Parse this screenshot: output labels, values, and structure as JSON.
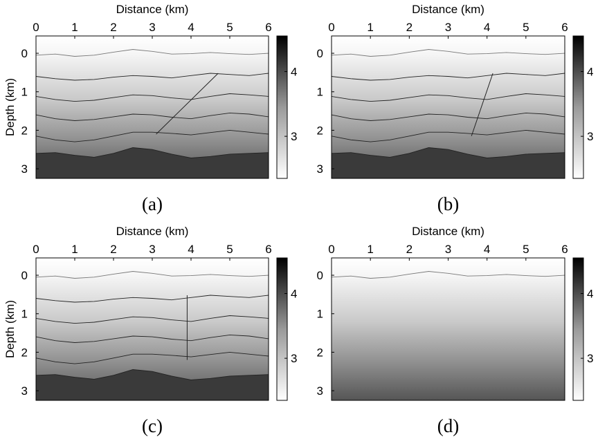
{
  "figure_title": "",
  "chart_data": [
    {
      "type": "heatmap",
      "caption": "(a)",
      "title": "",
      "xlabel": "Distance (km)",
      "ylabel": "Depth (km)",
      "xlim": [
        0,
        6
      ],
      "ylim": [
        3.25,
        -0.45
      ],
      "xticks": [
        0,
        1,
        2,
        3,
        4,
        5,
        6
      ],
      "yticks": [
        0,
        1,
        2,
        3
      ],
      "colorbar": {
        "range": [
          2.35,
          4.55
        ],
        "ticks": [
          3,
          4
        ],
        "colormap": "white-to-black"
      },
      "background_gradient": "velocity increases with depth",
      "deepest_layer_top_depth_km": 2.6,
      "horizons_km": [
        {
          "name": "surface",
          "x": [
            0,
            0.5,
            1,
            1.5,
            2,
            2.5,
            3,
            3.5,
            4,
            4.5,
            5,
            5.5,
            6
          ],
          "depth": [
            0.05,
            0.02,
            0.08,
            0.05,
            -0.03,
            -0.1,
            -0.05,
            0.02,
            0.01,
            -0.02,
            0.01,
            0.03,
            0.0
          ]
        },
        {
          "name": "horizon-1",
          "x": [
            0,
            0.5,
            1,
            1.5,
            2,
            2.5,
            3,
            3.5,
            4,
            4.5,
            5,
            5.5,
            6
          ],
          "depth": [
            0.6,
            0.66,
            0.7,
            0.68,
            0.62,
            0.58,
            0.6,
            0.64,
            0.58,
            0.52,
            0.55,
            0.58,
            0.52
          ]
        },
        {
          "name": "horizon-2",
          "x": [
            0,
            0.5,
            1,
            1.5,
            2,
            2.5,
            3,
            3.5,
            4,
            4.5,
            5,
            5.5,
            6
          ],
          "depth": [
            1.12,
            1.2,
            1.25,
            1.22,
            1.15,
            1.08,
            1.1,
            1.16,
            1.2,
            1.12,
            1.05,
            1.08,
            1.12
          ]
        },
        {
          "name": "horizon-3",
          "x": [
            0,
            0.5,
            1,
            1.5,
            2,
            2.5,
            3,
            3.5,
            4,
            4.5,
            5,
            5.5,
            6
          ],
          "depth": [
            1.6,
            1.7,
            1.75,
            1.72,
            1.65,
            1.58,
            1.6,
            1.66,
            1.7,
            1.62,
            1.55,
            1.58,
            1.65
          ]
        },
        {
          "name": "horizon-4",
          "x": [
            0,
            0.5,
            1,
            1.5,
            2,
            2.5,
            3,
            3.5,
            4,
            4.5,
            5,
            5.5,
            6
          ],
          "depth": [
            2.15,
            2.25,
            2.3,
            2.25,
            2.15,
            2.05,
            2.05,
            2.08,
            2.12,
            2.06,
            2.0,
            2.05,
            2.1
          ]
        },
        {
          "name": "horizon-5",
          "x": [
            0,
            0.5,
            1,
            1.5,
            2,
            2.5,
            3,
            3.5,
            4,
            4.5,
            5,
            5.5,
            6
          ],
          "depth": [
            2.6,
            2.58,
            2.65,
            2.7,
            2.6,
            2.45,
            2.5,
            2.62,
            2.72,
            2.68,
            2.62,
            2.6,
            2.58
          ]
        }
      ],
      "fault": {
        "top": [
          4.7,
          0.52
        ],
        "bottom": [
          3.1,
          2.1
        ]
      }
    },
    {
      "type": "heatmap",
      "caption": "(b)",
      "title": "",
      "xlabel": "Distance (km)",
      "ylabel": "",
      "xlim": [
        0,
        6
      ],
      "ylim": [
        3.25,
        -0.45
      ],
      "xticks": [
        0,
        1,
        2,
        3,
        4,
        5,
        6
      ],
      "yticks": [
        0,
        1,
        2,
        3
      ],
      "colorbar": {
        "range": [
          2.35,
          4.55
        ],
        "ticks": [
          3,
          4
        ],
        "colormap": "white-to-black"
      },
      "background_gradient": "velocity increases with depth",
      "deepest_layer_top_depth_km": 2.6,
      "horizons_km": [
        {
          "name": "surface",
          "x": [
            0,
            0.5,
            1,
            1.5,
            2,
            2.5,
            3,
            3.5,
            4,
            4.5,
            5,
            5.5,
            6
          ],
          "depth": [
            0.05,
            0.02,
            0.08,
            0.05,
            -0.03,
            -0.1,
            -0.05,
            0.02,
            0.01,
            -0.02,
            0.01,
            0.03,
            0.0
          ]
        },
        {
          "name": "horizon-1",
          "x": [
            0,
            0.5,
            1,
            1.5,
            2,
            2.5,
            3,
            3.5,
            4,
            4.5,
            5,
            5.5,
            6
          ],
          "depth": [
            0.6,
            0.66,
            0.7,
            0.68,
            0.62,
            0.58,
            0.6,
            0.64,
            0.58,
            0.52,
            0.55,
            0.58,
            0.52
          ]
        },
        {
          "name": "horizon-2",
          "x": [
            0,
            0.5,
            1,
            1.5,
            2,
            2.5,
            3,
            3.5,
            4,
            4.5,
            5,
            5.5,
            6
          ],
          "depth": [
            1.12,
            1.2,
            1.25,
            1.22,
            1.15,
            1.08,
            1.1,
            1.16,
            1.2,
            1.12,
            1.05,
            1.08,
            1.12
          ]
        },
        {
          "name": "horizon-3",
          "x": [
            0,
            0.5,
            1,
            1.5,
            2,
            2.5,
            3,
            3.5,
            4,
            4.5,
            5,
            5.5,
            6
          ],
          "depth": [
            1.6,
            1.7,
            1.75,
            1.72,
            1.65,
            1.58,
            1.6,
            1.66,
            1.7,
            1.62,
            1.55,
            1.58,
            1.65
          ]
        },
        {
          "name": "horizon-4",
          "x": [
            0,
            0.5,
            1,
            1.5,
            2,
            2.5,
            3,
            3.5,
            4,
            4.5,
            5,
            5.5,
            6
          ],
          "depth": [
            2.15,
            2.25,
            2.3,
            2.25,
            2.15,
            2.05,
            2.05,
            2.08,
            2.12,
            2.06,
            2.0,
            2.05,
            2.1
          ]
        },
        {
          "name": "horizon-5",
          "x": [
            0,
            0.5,
            1,
            1.5,
            2,
            2.5,
            3,
            3.5,
            4,
            4.5,
            5,
            5.5,
            6
          ],
          "depth": [
            2.6,
            2.58,
            2.65,
            2.7,
            2.6,
            2.45,
            2.5,
            2.62,
            2.72,
            2.68,
            2.62,
            2.6,
            2.58
          ]
        }
      ],
      "fault": {
        "top": [
          4.15,
          0.52
        ],
        "bottom": [
          3.6,
          2.15
        ]
      }
    },
    {
      "type": "heatmap",
      "caption": "(c)",
      "title": "",
      "xlabel": "Distance (km)",
      "ylabel": "Depth (km)",
      "xlim": [
        0,
        6
      ],
      "ylim": [
        3.25,
        -0.45
      ],
      "xticks": [
        0,
        1,
        2,
        3,
        4,
        5,
        6
      ],
      "yticks": [
        0,
        1,
        2,
        3
      ],
      "colorbar": {
        "range": [
          2.35,
          4.55
        ],
        "ticks": [
          3,
          4
        ],
        "colormap": "white-to-black"
      },
      "background_gradient": "velocity increases with depth",
      "deepest_layer_top_depth_km": 2.6,
      "horizons_km": [
        {
          "name": "surface",
          "x": [
            0,
            0.5,
            1,
            1.5,
            2,
            2.5,
            3,
            3.5,
            4,
            4.5,
            5,
            5.5,
            6
          ],
          "depth": [
            0.05,
            0.02,
            0.08,
            0.05,
            -0.03,
            -0.1,
            -0.05,
            0.02,
            0.01,
            -0.02,
            0.01,
            0.03,
            0.0
          ]
        },
        {
          "name": "horizon-1",
          "x": [
            0,
            0.5,
            1,
            1.5,
            2,
            2.5,
            3,
            3.5,
            4,
            4.5,
            5,
            5.5,
            6
          ],
          "depth": [
            0.6,
            0.66,
            0.7,
            0.68,
            0.62,
            0.58,
            0.6,
            0.64,
            0.58,
            0.52,
            0.55,
            0.58,
            0.52
          ]
        },
        {
          "name": "horizon-2",
          "x": [
            0,
            0.5,
            1,
            1.5,
            2,
            2.5,
            3,
            3.5,
            4,
            4.5,
            5,
            5.5,
            6
          ],
          "depth": [
            1.12,
            1.2,
            1.25,
            1.22,
            1.15,
            1.08,
            1.1,
            1.16,
            1.2,
            1.12,
            1.05,
            1.08,
            1.12
          ]
        },
        {
          "name": "horizon-3",
          "x": [
            0,
            0.5,
            1,
            1.5,
            2,
            2.5,
            3,
            3.5,
            4,
            4.5,
            5,
            5.5,
            6
          ],
          "depth": [
            1.6,
            1.7,
            1.75,
            1.72,
            1.65,
            1.58,
            1.6,
            1.66,
            1.7,
            1.62,
            1.55,
            1.58,
            1.65
          ]
        },
        {
          "name": "horizon-4",
          "x": [
            0,
            0.5,
            1,
            1.5,
            2,
            2.5,
            3,
            3.5,
            4,
            4.5,
            5,
            5.5,
            6
          ],
          "depth": [
            2.15,
            2.25,
            2.3,
            2.25,
            2.15,
            2.05,
            2.05,
            2.08,
            2.12,
            2.06,
            2.0,
            2.05,
            2.1
          ]
        },
        {
          "name": "horizon-5",
          "x": [
            0,
            0.5,
            1,
            1.5,
            2,
            2.5,
            3,
            3.5,
            4,
            4.5,
            5,
            5.5,
            6
          ],
          "depth": [
            2.6,
            2.58,
            2.65,
            2.7,
            2.6,
            2.45,
            2.5,
            2.62,
            2.72,
            2.68,
            2.62,
            2.6,
            2.58
          ]
        }
      ],
      "fault": {
        "top": [
          3.9,
          0.52
        ],
        "bottom": [
          3.9,
          2.2
        ]
      }
    },
    {
      "type": "heatmap",
      "caption": "(d)",
      "title": "",
      "xlabel": "Distance (km)",
      "ylabel": "",
      "xlim": [
        0,
        6
      ],
      "ylim": [
        3.25,
        -0.45
      ],
      "xticks": [
        0,
        1,
        2,
        3,
        4,
        5,
        6
      ],
      "yticks": [
        0,
        1,
        2,
        3
      ],
      "colorbar": {
        "range": [
          2.35,
          4.55
        ],
        "ticks": [
          3,
          4
        ],
        "colormap": "white-to-black"
      },
      "background_gradient": "velocity increases with depth",
      "deepest_layer_top_depth_km": null,
      "horizons_km": [
        {
          "name": "surface",
          "x": [
            0,
            0.5,
            1,
            1.5,
            2,
            2.5,
            3,
            3.5,
            4,
            4.5,
            5,
            5.5,
            6
          ],
          "depth": [
            0.05,
            0.02,
            0.08,
            0.05,
            -0.03,
            -0.1,
            -0.05,
            0.02,
            0.01,
            -0.02,
            0.01,
            0.03,
            0.0
          ]
        }
      ],
      "fault": null
    }
  ]
}
